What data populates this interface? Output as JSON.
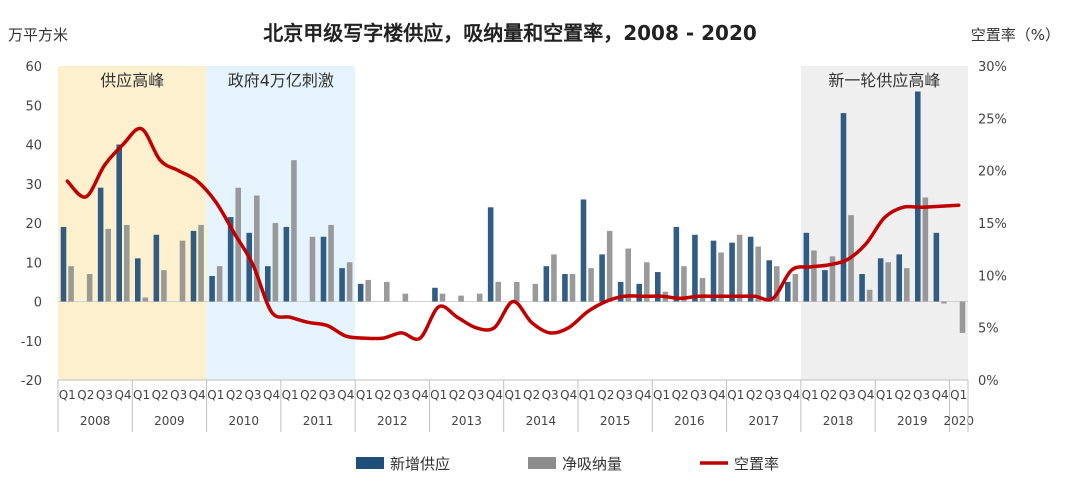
{
  "chart_data": {
    "type": "bar+line",
    "title": "北京甲级写字楼供应，吸纳量和空置率，2008 - 2020",
    "y_left_label": "万平方米",
    "y_right_label": "空置率（%）",
    "y_left_ticks": [
      "60",
      "50",
      "40",
      "30",
      "20",
      "10",
      "0",
      "-10",
      "-20"
    ],
    "y_right_ticks": [
      "30%",
      "25%",
      "20%",
      "15%",
      "10%",
      "5%",
      "0%"
    ],
    "ylim_left": [
      -20,
      60
    ],
    "ylim_right": [
      0,
      30
    ],
    "quarter_labels": [
      "Q1",
      "Q2",
      "Q3",
      "Q4",
      "Q1",
      "Q2",
      "Q3",
      "Q4",
      "Q1",
      "Q2",
      "Q3",
      "Q4",
      "Q1",
      "Q2",
      "Q3",
      "Q4",
      "Q1",
      "Q2",
      "Q3",
      "Q4",
      "Q1",
      "Q2",
      "Q3",
      "Q4",
      "Q1",
      "Q2",
      "Q3",
      "Q4",
      "Q1",
      "Q2",
      "Q3",
      "Q4",
      "Q1",
      "Q2",
      "Q3",
      "Q4",
      "Q1",
      "Q2",
      "Q3",
      "Q4",
      "Q1",
      "Q2",
      "Q3",
      "Q4",
      "Q1",
      "Q2",
      "Q3",
      "Q4",
      "Q1"
    ],
    "years": [
      "2008",
      "2009",
      "2010",
      "2011",
      "2012",
      "2013",
      "2014",
      "2015",
      "2016",
      "2017",
      "2018",
      "2019",
      "2020"
    ],
    "year_quarter_counts": [
      4,
      4,
      4,
      4,
      4,
      4,
      4,
      4,
      4,
      4,
      4,
      4,
      1
    ],
    "highlight_regions": [
      {
        "label": "供应高峰",
        "start": 0,
        "end": 8,
        "color": "#fdf0cf"
      },
      {
        "label": "政府4万亿刺激",
        "start": 8,
        "end": 16,
        "color": "#e5f4fc"
      },
      {
        "label": "新一轮供应高峰",
        "start": 40,
        "end": 49,
        "color": "#efefef"
      }
    ],
    "series": [
      {
        "name": "新增供应",
        "type": "bar",
        "color": "#1f4e79",
        "values": [
          19,
          0,
          29,
          40,
          11,
          17,
          0,
          18,
          6.5,
          21.5,
          17.5,
          9,
          19,
          0,
          16.5,
          8.5,
          4.5,
          0,
          0,
          0,
          3.5,
          0,
          0,
          24,
          0,
          0,
          9,
          7,
          26,
          12,
          5,
          4.5,
          7.5,
          19,
          17,
          15.5,
          15,
          16.5,
          10.5,
          5,
          17.5,
          8,
          48,
          7,
          11,
          12,
          53.5,
          17.5,
          0
        ]
      },
      {
        "name": "净吸纳量",
        "type": "bar",
        "color": "#8c8c8c",
        "values": [
          9,
          7,
          18.5,
          19.5,
          1,
          8,
          15.5,
          19.5,
          9,
          29,
          27,
          20,
          36,
          16.5,
          19.5,
          10,
          5.5,
          5,
          2,
          0,
          2,
          1.5,
          2,
          5,
          5,
          4.5,
          12,
          7,
          8.5,
          18,
          13.5,
          10,
          2.5,
          9,
          6,
          12.5,
          17,
          14,
          9,
          7,
          13,
          11.5,
          22,
          3,
          10,
          8.5,
          26.5,
          -0.5,
          -8
        ]
      },
      {
        "name": "空置率",
        "type": "line",
        "color": "#c00000",
        "values": [
          19,
          17.5,
          20.5,
          22.5,
          24,
          21,
          20,
          19,
          17,
          14,
          11,
          6.5,
          6,
          5.5,
          5.2,
          4.2,
          4,
          4,
          4.5,
          4,
          7,
          6,
          5,
          5,
          7.5,
          5.5,
          4.5,
          5,
          6.5,
          7.5,
          8,
          8,
          8,
          7.8,
          8,
          8,
          8,
          8,
          7.8,
          10.5,
          10.8,
          11,
          11.5,
          13,
          15.5,
          16.5,
          16.5,
          16.6,
          16.7
        ]
      }
    ]
  }
}
